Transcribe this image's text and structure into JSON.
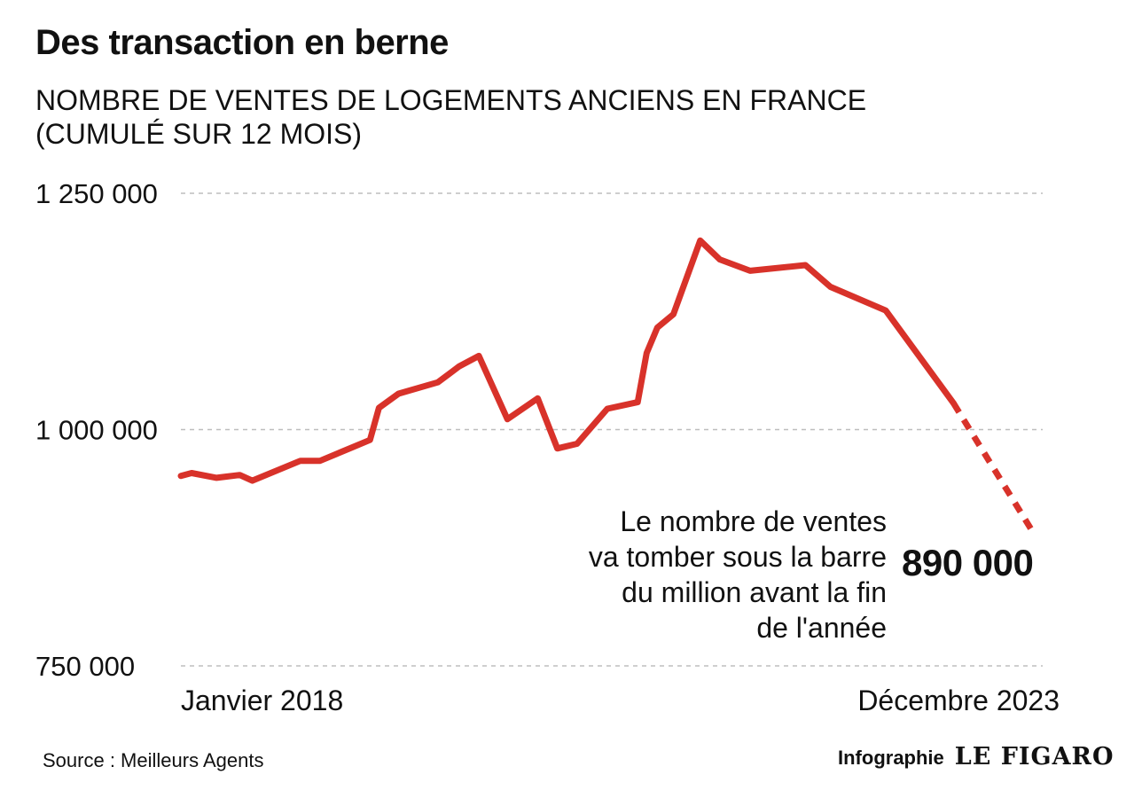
{
  "header": {
    "title": "Des transaction en berne",
    "subtitle_line1": "NOMBRE DE VENTES DE LOGEMENTS ANCIENS EN FRANCE",
    "subtitle_line2": "(CUMULÉ SUR 12 MOIS)"
  },
  "annotation": {
    "lines": [
      "Le nombre de ventes",
      "va tomber sous la barre",
      "du million avant la fin",
      "de l'année"
    ],
    "callout": "890 000"
  },
  "footer": {
    "source": "Source : Meilleurs Agents",
    "credit_label": "Infographie",
    "logo_text": "LE FIGARO"
  },
  "chart_data": {
    "type": "line",
    "title": "Des transaction en berne",
    "subtitle": "NOMBRE DE VENTES DE LOGEMENTS ANCIENS EN FRANCE (CUMULÉ SUR 12 MOIS)",
    "xlabel": "",
    "ylabel": "",
    "x_start_label": "Janvier 2018",
    "x_end_label": "Décembre 2023",
    "ylim": [
      750000,
      1250000
    ],
    "y_ticks": [
      750000,
      1000000,
      1250000
    ],
    "y_tick_labels": [
      "750 000",
      "1 000 000",
      "1 250 000"
    ],
    "grid": "horizontal dashed",
    "line_color": "#d8322a",
    "grid_color": "#bdbdbd",
    "series": [
      {
        "values": [
          [
            0,
            951000
          ],
          [
            0.6,
            954000
          ],
          [
            2,
            949000
          ],
          [
            3.3,
            952000
          ],
          [
            4,
            946000
          ],
          [
            6.7,
            967000
          ],
          [
            7.8,
            967000
          ],
          [
            10.6,
            989000
          ],
          [
            11.1,
            1023000
          ],
          [
            12.2,
            1038000
          ],
          [
            14.4,
            1050000
          ],
          [
            15.6,
            1067000
          ],
          [
            16.7,
            1078000
          ],
          [
            18.3,
            1011000
          ],
          [
            20,
            1033000
          ],
          [
            21.1,
            980000
          ],
          [
            22.2,
            985000
          ],
          [
            23.9,
            1022000
          ],
          [
            25.6,
            1029000
          ],
          [
            26.1,
            1081000
          ],
          [
            26.7,
            1108000
          ],
          [
            27.6,
            1122000
          ],
          [
            29.1,
            1200000
          ],
          [
            30.2,
            1180000
          ],
          [
            31.9,
            1168000
          ],
          [
            35,
            1174000
          ],
          [
            36.4,
            1151000
          ],
          [
            39.5,
            1126000
          ],
          [
            43.3,
            1028000
          ]
        ]
      },
      {
        "projection": true,
        "values": [
          [
            43.3,
            1028000
          ],
          [
            47.8,
            890000
          ]
        ]
      }
    ]
  }
}
